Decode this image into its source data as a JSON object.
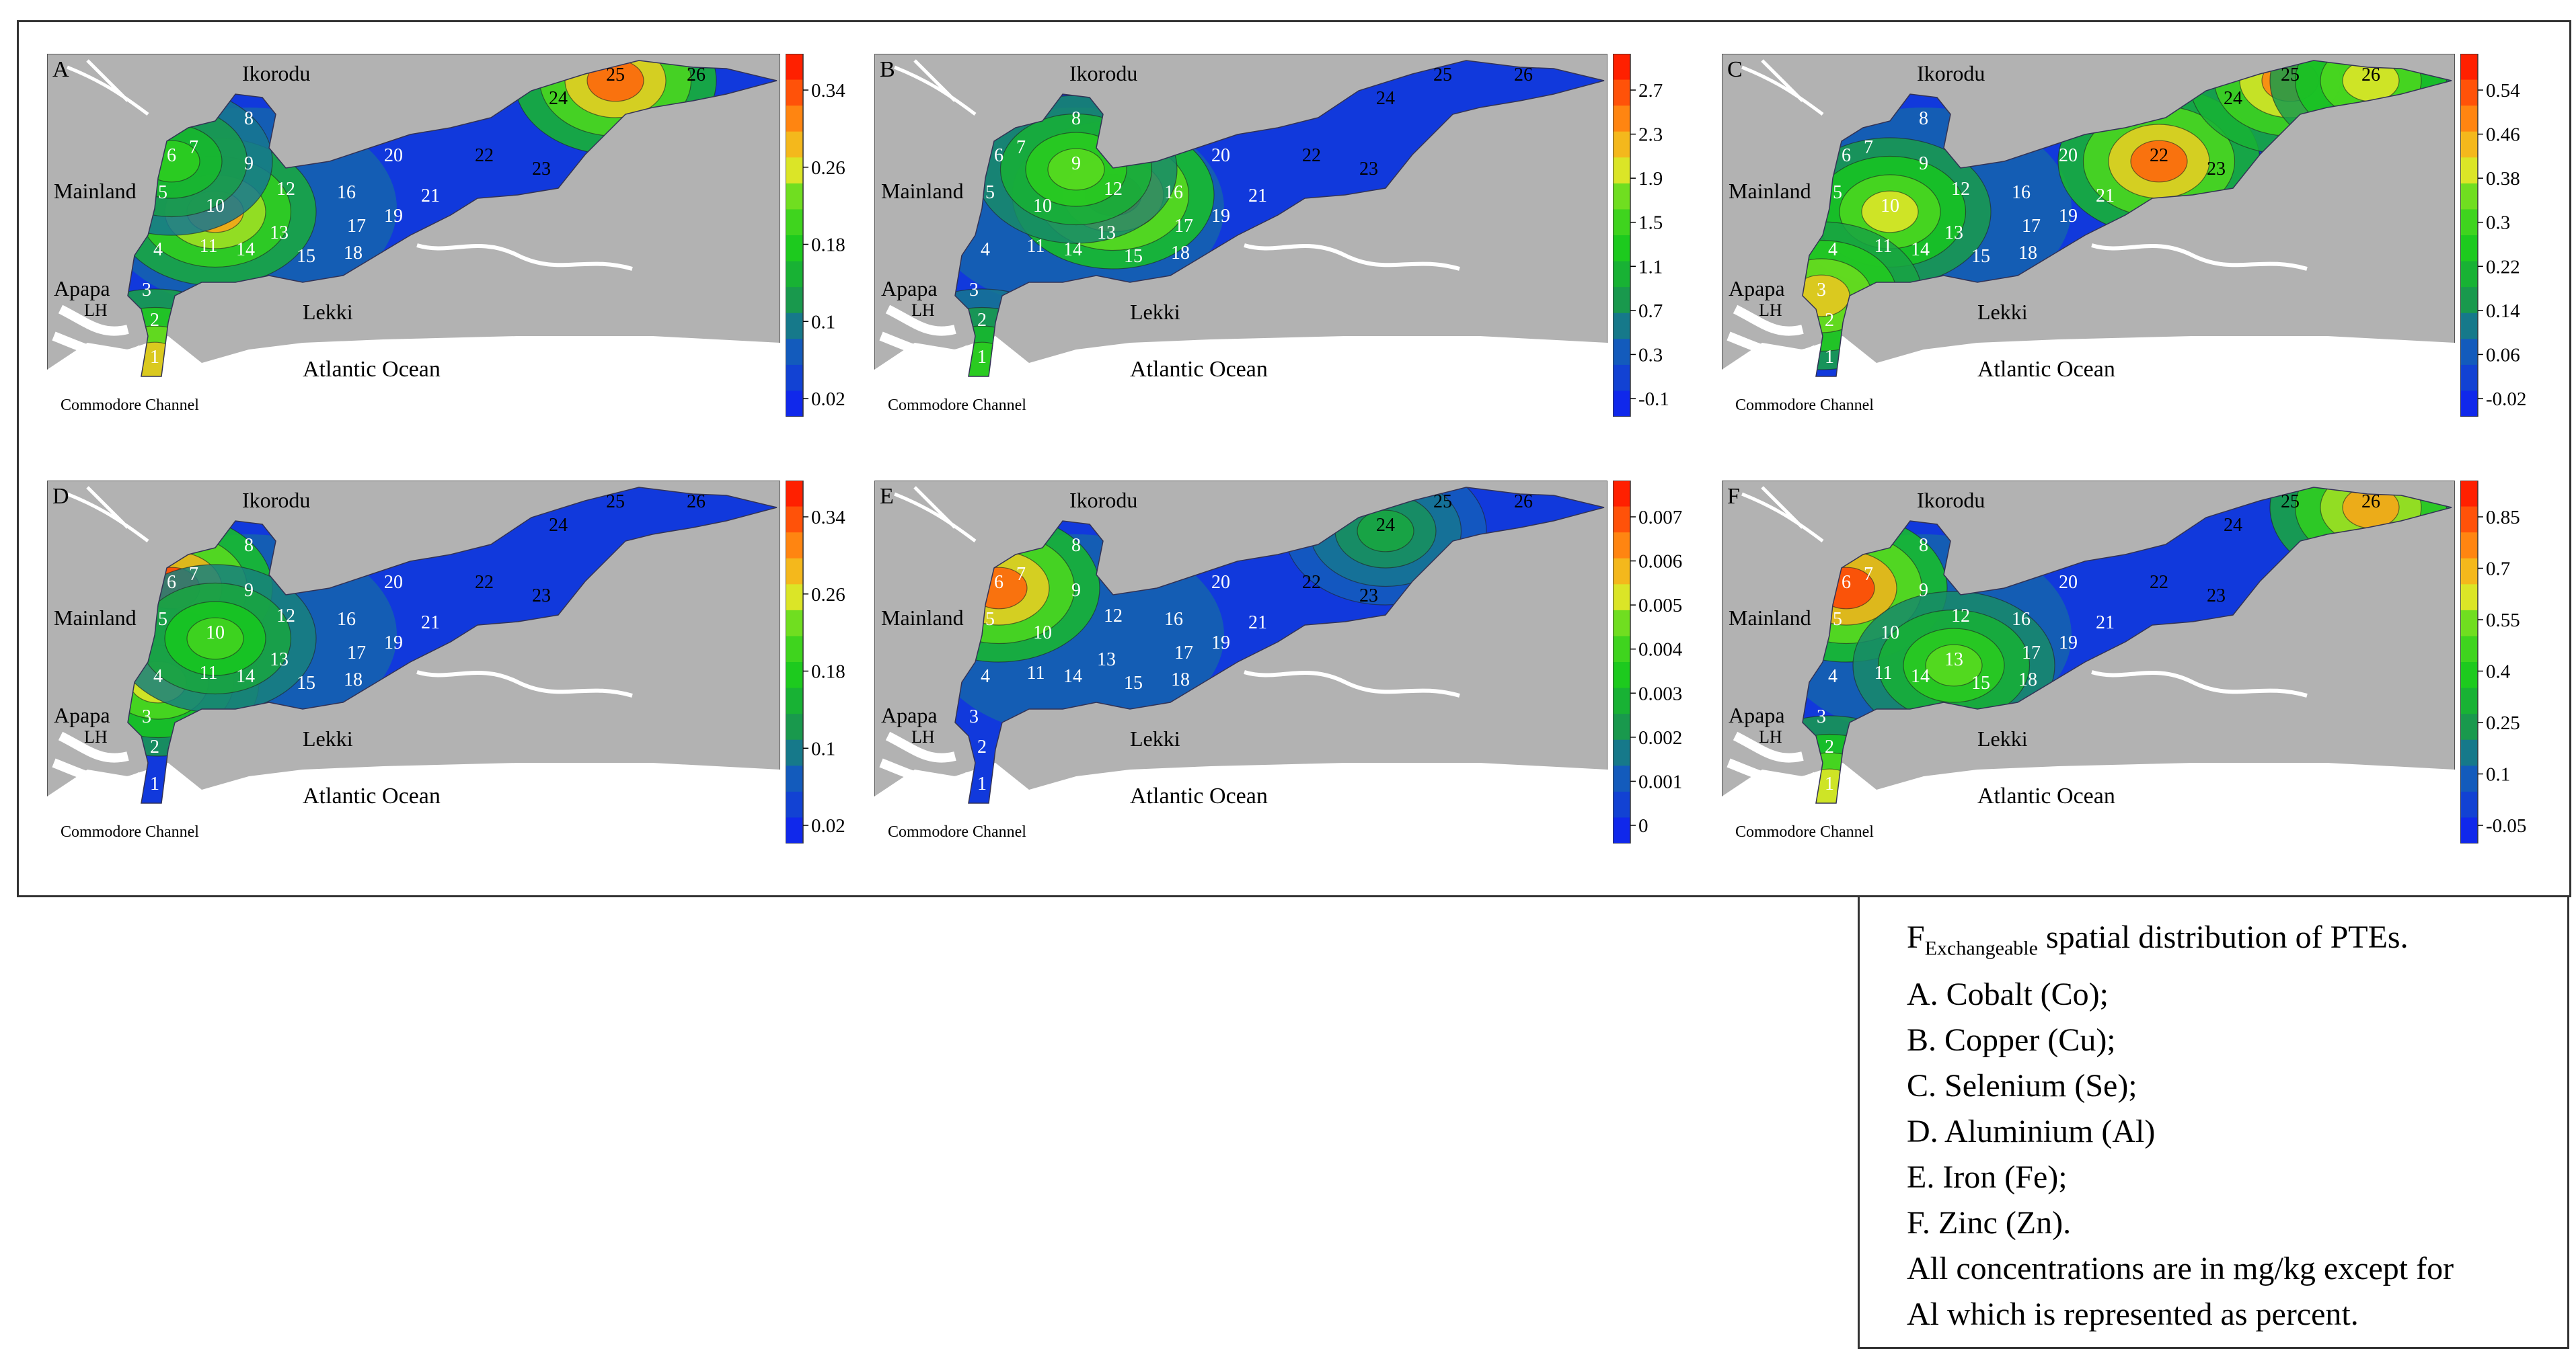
{
  "panels": [
    {
      "id": "A",
      "colorbar": [
        "0.34",
        "0.26",
        "0.18",
        "0.1",
        "0.02"
      ],
      "ocean": "Atlantic Ocean",
      "channel": "Commodore Channel",
      "lh": "LH",
      "places": [
        "Ikorodu",
        "Mainland",
        "Apapa",
        "Lekki"
      ],
      "hot": [
        {
          "s": "10",
          "v": 0.8
        },
        {
          "s": "25",
          "v": 0.9
        },
        {
          "s": "6",
          "v": 0.5
        },
        {
          "s": "1",
          "v": 0.75
        }
      ]
    },
    {
      "id": "B",
      "colorbar": [
        "2.7",
        "2.3",
        "1.9",
        "1.5",
        "1.1",
        "0.7",
        "0.3",
        "-0.1"
      ],
      "ocean": "Atlantic Ocean",
      "channel": "Commodore Channel",
      "lh": "LH",
      "places": [
        "Ikorodu",
        "Mainland",
        "Apapa",
        "Lekki"
      ],
      "hot": [
        {
          "s": "12",
          "v": 0.95
        },
        {
          "s": "9",
          "v": 0.6
        },
        {
          "s": "1",
          "v": 0.5
        }
      ]
    },
    {
      "id": "C",
      "colorbar": [
        "0.54",
        "0.46",
        "0.38",
        "0.3",
        "0.22",
        "0.14",
        "0.06",
        "-0.02"
      ],
      "ocean": "Atlantic Ocean",
      "channel": "Commodore Channel",
      "lh": "LH",
      "places": [
        "Ikorodu",
        "Mainland",
        "Apapa",
        "Lekki"
      ],
      "hot": [
        {
          "s": "22",
          "v": 0.9
        },
        {
          "s": "25",
          "v": 0.85
        },
        {
          "s": "26",
          "v": 0.7
        },
        {
          "s": "10",
          "v": 0.7
        },
        {
          "s": "3",
          "v": 0.75
        }
      ]
    },
    {
      "id": "D",
      "colorbar": [
        "0.34",
        "0.26",
        "0.18",
        "0.1",
        "0.02"
      ],
      "ocean": "Atlantic Ocean",
      "channel": "Commodore Channel",
      "lh": "LH",
      "places": [
        "Ikorodu",
        "Mainland",
        "Apapa",
        "Lekki"
      ],
      "hot": [
        {
          "s": "6",
          "v": 0.95
        },
        {
          "s": "4",
          "v": 0.7
        },
        {
          "s": "10",
          "v": 0.55
        }
      ]
    },
    {
      "id": "E",
      "colorbar": [
        "0.007",
        "0.006",
        "0.005",
        "0.004",
        "0.003",
        "0.002",
        "0.001",
        "0"
      ],
      "ocean": "Atlantic Ocean",
      "channel": "Commodore Channel",
      "lh": "LH",
      "places": [
        "Ikorodu",
        "Mainland",
        "Apapa",
        "Lekki"
      ],
      "hot": [
        {
          "s": "6",
          "v": 0.9
        },
        {
          "s": "24",
          "v": 0.35
        }
      ]
    },
    {
      "id": "F",
      "colorbar": [
        "0.85",
        "0.7",
        "0.55",
        "0.4",
        "0.25",
        "0.1",
        "-0.05"
      ],
      "ocean": "Atlantic Ocean",
      "channel": "Commodore Channel",
      "lh": "LH",
      "places": [
        "Ikorodu",
        "Mainland",
        "Apapa",
        "Lekki"
      ],
      "hot": [
        {
          "s": "6",
          "v": 0.95
        },
        {
          "s": "26",
          "v": 0.8
        },
        {
          "s": "1",
          "v": 0.7
        },
        {
          "s": "13",
          "v": 0.6
        }
      ]
    }
  ],
  "stations": [
    "1",
    "2",
    "3",
    "4",
    "5",
    "6",
    "7",
    "8",
    "9",
    "10",
    "11",
    "12",
    "13",
    "14",
    "15",
    "16",
    "17",
    "18",
    "19",
    "20",
    "21",
    "22",
    "23",
    "24",
    "25",
    "26"
  ],
  "colors": {
    "land": "#b2b2b2",
    "water": "#ffffff",
    "low": "#1030e0",
    "mid": "#18c018",
    "high": "#ff2000",
    "frame": "#333333"
  },
  "caption": {
    "line1_main": "F",
    "line1_sub": "Exchangeable",
    "line1_rest": " spatial distribution of PTEs.",
    "items": [
      "A. Cobalt (Co);",
      "B. Copper (Cu);",
      "C. Selenium (Se);",
      "D. Aluminium (Al)",
      "E. Iron (Fe);",
      "F. Zinc (Zn).",
      "All concentrations are in mg/kg except for",
      "Al which is represented as percent."
    ]
  }
}
